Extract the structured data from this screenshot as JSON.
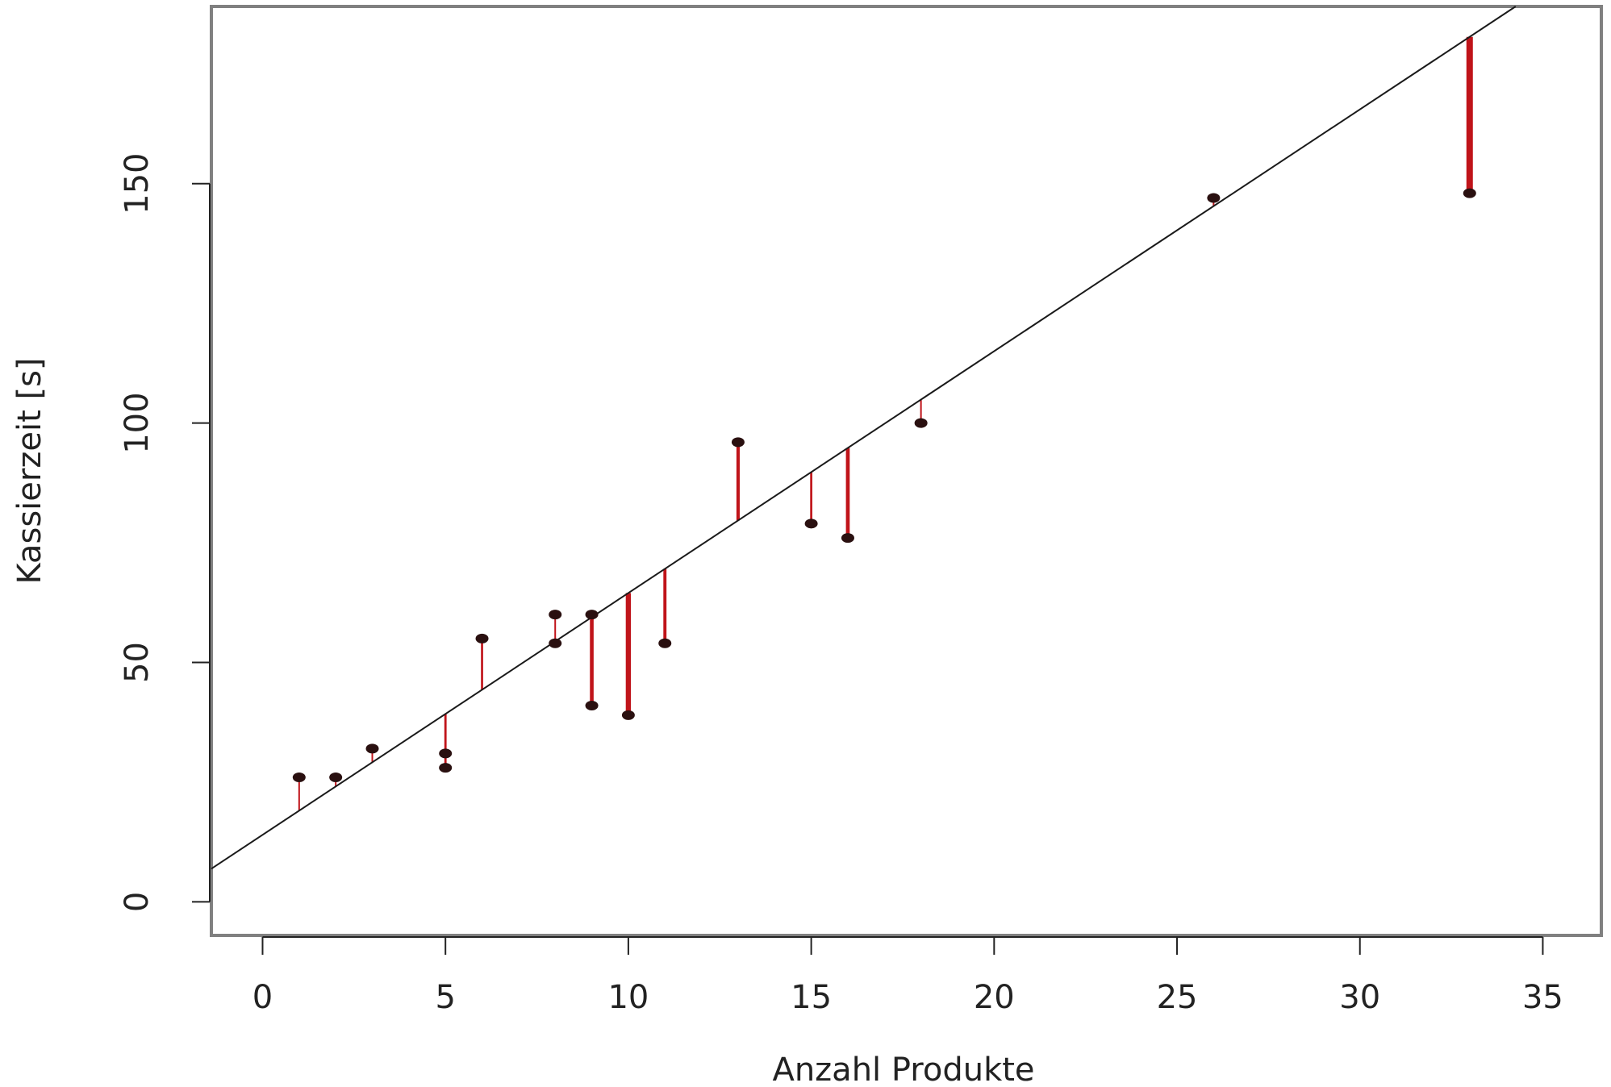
{
  "chart_data": {
    "type": "scatter",
    "title": "",
    "xlabel": "Anzahl Produkte",
    "ylabel": "Kassierzeit [s]",
    "xlim": [
      -1.4,
      36.6
    ],
    "ylim": [
      -7,
      187
    ],
    "x_ticks": [
      0,
      5,
      10,
      15,
      20,
      25,
      30,
      35
    ],
    "y_ticks": [
      0,
      50,
      100,
      150
    ],
    "grid": false,
    "legend": "none",
    "regression_line": {
      "intercept": 14,
      "slope": 5.05
    },
    "points": [
      {
        "x": 1,
        "y": 26
      },
      {
        "x": 2,
        "y": 26
      },
      {
        "x": 3,
        "y": 32
      },
      {
        "x": 5,
        "y": 31
      },
      {
        "x": 5,
        "y": 28
      },
      {
        "x": 6,
        "y": 55
      },
      {
        "x": 8,
        "y": 60
      },
      {
        "x": 8,
        "y": 54
      },
      {
        "x": 9,
        "y": 60
      },
      {
        "x": 9,
        "y": 41
      },
      {
        "x": 10,
        "y": 39
      },
      {
        "x": 11,
        "y": 54
      },
      {
        "x": 13,
        "y": 96
      },
      {
        "x": 15,
        "y": 79
      },
      {
        "x": 16,
        "y": 76
      },
      {
        "x": 18,
        "y": 100
      },
      {
        "x": 26,
        "y": 147
      },
      {
        "x": 33,
        "y": 148
      }
    ],
    "colors": {
      "points": "#2a1010",
      "regression_line": "#1a1a1a",
      "residuals": "#c0141a",
      "frame": "#808080"
    }
  }
}
